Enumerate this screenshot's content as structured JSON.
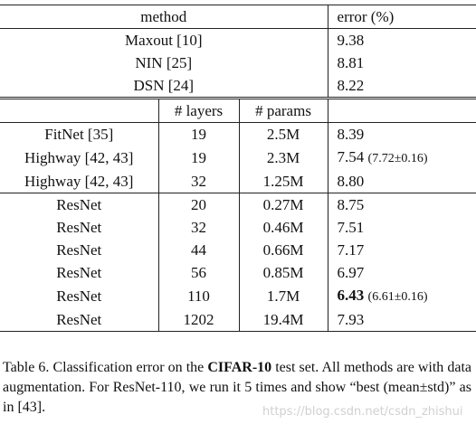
{
  "table": {
    "header": {
      "method": "method",
      "error": "error (%)"
    },
    "top_rows": [
      {
        "method": "Maxout [10]",
        "error": "9.38"
      },
      {
        "method": "NIN [25]",
        "error": "8.81"
      },
      {
        "method": "DSN [24]",
        "error": "8.22"
      }
    ],
    "subheader": {
      "layers": "# layers",
      "params": "# params"
    },
    "mid_rows": [
      {
        "method": "FitNet [35]",
        "layers": "19",
        "params": "2.5M",
        "error": "8.39"
      },
      {
        "method": "Highway [42, 43]",
        "layers": "19",
        "params": "2.3M",
        "error": "7.54",
        "note": "(7.72±0.16)"
      },
      {
        "method": "Highway [42, 43]",
        "layers": "32",
        "params": "1.25M",
        "error": "8.80"
      }
    ],
    "resnet_rows": [
      {
        "method": "ResNet",
        "layers": "20",
        "params": "0.27M",
        "error": "8.75"
      },
      {
        "method": "ResNet",
        "layers": "32",
        "params": "0.46M",
        "error": "7.51"
      },
      {
        "method": "ResNet",
        "layers": "44",
        "params": "0.66M",
        "error": "7.17"
      },
      {
        "method": "ResNet",
        "layers": "56",
        "params": "0.85M",
        "error": "6.97"
      },
      {
        "method": "ResNet",
        "layers": "110",
        "params": "1.7M",
        "error": "6.43",
        "bold": true,
        "note": "(6.61±0.16)"
      },
      {
        "method": "ResNet",
        "layers": "1202",
        "params": "19.4M",
        "error": "7.93"
      }
    ]
  },
  "caption": {
    "label": "Table 6.",
    "text_1": "Classification error on the",
    "dataset": "CIFAR-10",
    "text_2": "test set. All methods are with data augmentation. For ResNet-110, we run it 5 times and show “best (mean±std)” as in [43]."
  },
  "watermark": "https://blog.csdn.net/csdn_zhishui"
}
